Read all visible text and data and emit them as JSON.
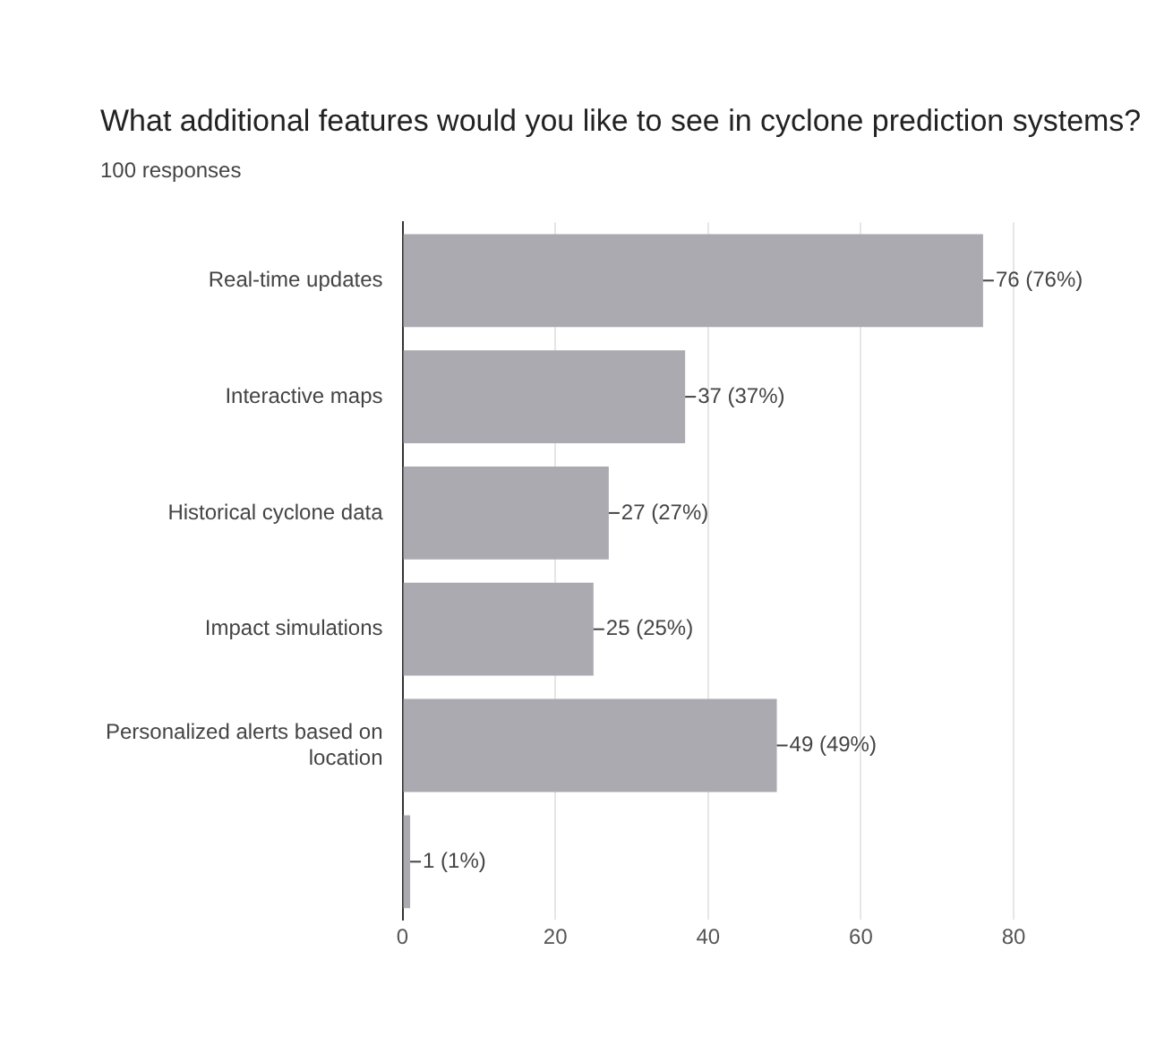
{
  "chart_data": {
    "type": "bar",
    "orientation": "horizontal",
    "title": "What additional features would you like to see in cyclone prediction systems?",
    "subtitle": "100 responses",
    "categories": [
      "Real-time updates",
      "Interactive maps",
      "Historical cyclone data",
      "Impact simulations",
      "Personalized alerts based on location",
      null
    ],
    "values": [
      76,
      37,
      27,
      25,
      49,
      1
    ],
    "value_labels": [
      "76 (76%)",
      "37 (37%)",
      "27 (27%)",
      "25 (25%)",
      "49 (49%)",
      "1 (1%)"
    ],
    "color": "#aaaab0",
    "xlim": [
      0,
      80
    ],
    "xticks": [
      0,
      20,
      40,
      60,
      80
    ],
    "grid": "x",
    "legend": false
  }
}
